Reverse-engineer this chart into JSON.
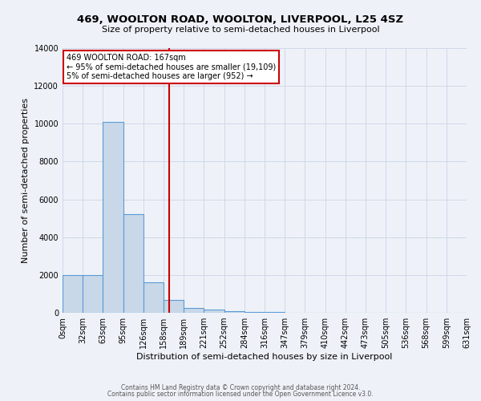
{
  "title1": "469, WOOLTON ROAD, WOOLTON, LIVERPOOL, L25 4SZ",
  "title2": "Size of property relative to semi-detached houses in Liverpool",
  "xlabel": "Distribution of semi-detached houses by size in Liverpool",
  "ylabel": "Number of semi-detached properties",
  "bin_labels": [
    "0sqm",
    "32sqm",
    "63sqm",
    "95sqm",
    "126sqm",
    "158sqm",
    "189sqm",
    "221sqm",
    "252sqm",
    "284sqm",
    "316sqm",
    "347sqm",
    "379sqm",
    "410sqm",
    "442sqm",
    "473sqm",
    "505sqm",
    "536sqm",
    "568sqm",
    "599sqm",
    "631sqm"
  ],
  "bar_values": [
    2000,
    2000,
    10100,
    5200,
    1600,
    700,
    250,
    150,
    100,
    50,
    30,
    0,
    0,
    0,
    0,
    0,
    0,
    0,
    0,
    0
  ],
  "bar_color": "#c8d8e8",
  "bar_edgecolor": "#5b9bd5",
  "property_size": 167,
  "annotation_line1": "469 WOOLTON ROAD: 167sqm",
  "annotation_line2": "← 95% of semi-detached houses are smaller (19,109)",
  "annotation_line3": "5% of semi-detached houses are larger (952) →",
  "vline_color": "#cc0000",
  "ylim": [
    0,
    14000
  ],
  "yticks": [
    0,
    2000,
    4000,
    6000,
    8000,
    10000,
    12000,
    14000
  ],
  "grid_color": "#d0d8e8",
  "footer1": "Contains HM Land Registry data © Crown copyright and database right 2024.",
  "footer2": "Contains public sector information licensed under the Open Government Licence v3.0.",
  "bg_color": "#eef2f8",
  "annotation_box_facecolor": "#ffffff",
  "annotation_box_edgecolor": "#cc0000",
  "title1_fontsize": 9.5,
  "title2_fontsize": 8,
  "xlabel_fontsize": 8,
  "ylabel_fontsize": 8,
  "tick_fontsize": 7,
  "footer_fontsize": 5.5
}
